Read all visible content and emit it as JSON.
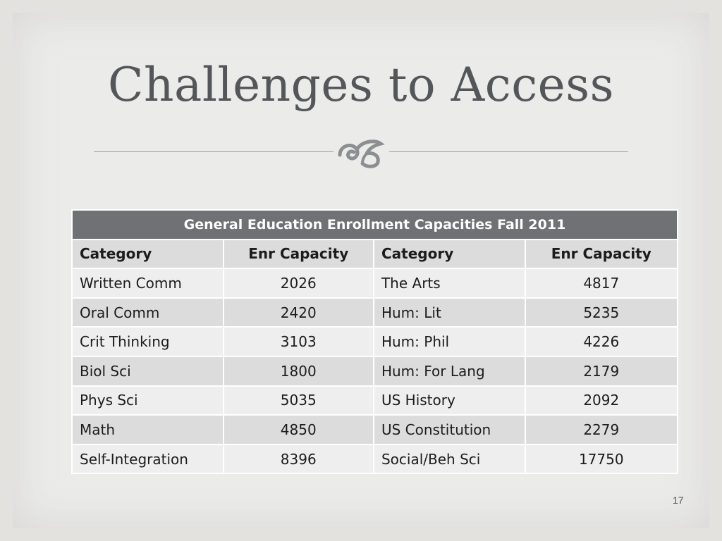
{
  "slide": {
    "title": "Challenges to Access",
    "page_number": "17"
  },
  "table": {
    "caption": "General Education Enrollment Capacities Fall 2011",
    "headers": [
      "Category",
      "Enr Capacity",
      "Category",
      "Enr Capacity"
    ],
    "rows": [
      [
        "Written Comm",
        "2026",
        "The Arts",
        "4817"
      ],
      [
        "Oral Comm",
        "2420",
        "Hum: Lit",
        "5235"
      ],
      [
        "Crit Thinking",
        "3103",
        "Hum: Phil",
        "4226"
      ],
      [
        "Biol Sci",
        "1800",
        "Hum: For Lang",
        "2179"
      ],
      [
        "Phys Sci",
        "5035",
        "US History",
        "2092"
      ],
      [
        "Math",
        "4850",
        "US Constitution",
        "2279"
      ],
      [
        "Self-Integration",
        "8396",
        "Social/Beh Sci",
        "17750"
      ]
    ]
  },
  "colors": {
    "caption_bg": "#707175",
    "title_text": "#55565a",
    "row_dark": "#dcdcdd",
    "row_light": "#eeeeee"
  },
  "icons": [
    "flourish-ornament-icon"
  ]
}
